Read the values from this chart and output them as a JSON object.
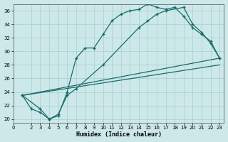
{
  "xlabel": "Humidex (Indice chaleur)",
  "bg_color": "#cce8e8",
  "grid_color": "#aacece",
  "line_color": "#1a6b6b",
  "xlim": [
    0,
    23.5
  ],
  "ylim": [
    19.5,
    37.0
  ],
  "xticks": [
    0,
    2,
    3,
    4,
    5,
    6,
    7,
    8,
    9,
    10,
    11,
    12,
    13,
    14,
    15,
    16,
    17,
    18,
    19,
    20,
    21,
    22,
    23
  ],
  "yticks": [
    20,
    22,
    24,
    26,
    28,
    30,
    32,
    34,
    36
  ],
  "line1_x": [
    1,
    2,
    3,
    4,
    5,
    6,
    7,
    8,
    9,
    10,
    11,
    12,
    13,
    14,
    15,
    16,
    17,
    18,
    19,
    20,
    21,
    22,
    23
  ],
  "line1_y": [
    23.5,
    21.5,
    21.0,
    20.0,
    20.5,
    24.0,
    29.0,
    30.5,
    30.5,
    32.5,
    34.5,
    35.5,
    36.0,
    36.2,
    37.0,
    36.5,
    36.2,
    36.5,
    35.2,
    33.5,
    32.5,
    31.5,
    29.0
  ],
  "line2_x": [
    1,
    3,
    4,
    5,
    6,
    7,
    10,
    14,
    15,
    16,
    17,
    19,
    20,
    21,
    22,
    23
  ],
  "line2_y": [
    23.5,
    21.5,
    20.0,
    20.7,
    23.5,
    24.5,
    28.0,
    33.5,
    34.5,
    35.5,
    36.0,
    36.5,
    34.0,
    32.8,
    31.2,
    29.0
  ],
  "line3_x": [
    1,
    23
  ],
  "line3_y": [
    23.5,
    29.0
  ],
  "line4_x": [
    1,
    23
  ],
  "line4_y": [
    23.5,
    28.0
  ]
}
